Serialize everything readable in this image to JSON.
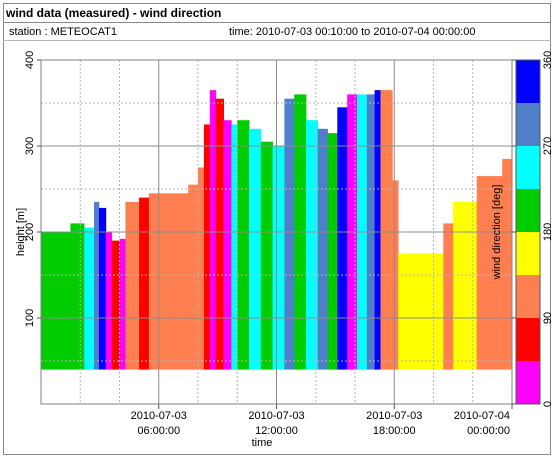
{
  "header": {
    "title": "wind data (measured) - wind direction",
    "station": "station : METEOCAT1",
    "time_range": "time: 2010-07-03 00:10:00 to 2010-07-04 00:00:00"
  },
  "chart_data": {
    "type": "heatmap",
    "xlabel": "time",
    "ylabel": "height [m]",
    "x_ticks": [
      {
        "hour": 6,
        "line1": "2010-07-03",
        "line2": "06:00:00"
      },
      {
        "hour": 12,
        "line1": "2010-07-03",
        "line2": "12:00:00"
      },
      {
        "hour": 18,
        "line1": "2010-07-03",
        "line2": "18:00:00"
      },
      {
        "hour": 24,
        "line1": "2010-07-04",
        "line2": "00:00:00"
      }
    ],
    "xlim_hours": [
      0,
      24
    ],
    "ylim": [
      0,
      400
    ],
    "y_ticks": [
      100,
      200,
      300,
      400
    ],
    "grid": true,
    "colorbar": {
      "label": "wind direction [deg]",
      "range": [
        0,
        360
      ],
      "ticks": [
        0,
        90,
        180,
        270,
        360
      ],
      "bins": [
        {
          "from": 0,
          "to": 45,
          "color": "#ff00ff"
        },
        {
          "from": 45,
          "to": 90,
          "color": "#ff0000"
        },
        {
          "from": 90,
          "to": 135,
          "color": "#ff7f50"
        },
        {
          "from": 135,
          "to": 180,
          "color": "#ffff00"
        },
        {
          "from": 180,
          "to": 225,
          "color": "#00cc00"
        },
        {
          "from": 225,
          "to": 270,
          "color": "#00ffff"
        },
        {
          "from": 270,
          "to": 315,
          "color": "#4f7fc8"
        },
        {
          "from": 315,
          "to": 360,
          "color": "#0000ff"
        }
      ]
    },
    "profile_bottom_m": 40,
    "profiles": [
      {
        "start": 0.0,
        "end": 1.5,
        "top": 200,
        "dir": 200
      },
      {
        "start": 1.5,
        "end": 2.2,
        "top": 210,
        "dir": 220
      },
      {
        "start": 2.2,
        "end": 2.7,
        "top": 205,
        "dir": 240
      },
      {
        "start": 2.7,
        "end": 2.95,
        "top": 235,
        "dir": 300
      },
      {
        "start": 2.95,
        "end": 3.3,
        "top": 228,
        "dir": 320
      },
      {
        "start": 3.3,
        "end": 3.6,
        "top": 200,
        "dir": 20
      },
      {
        "start": 3.6,
        "end": 4.0,
        "top": 190,
        "dir": 80
      },
      {
        "start": 4.0,
        "end": 4.3,
        "top": 192,
        "dir": 30
      },
      {
        "start": 4.3,
        "end": 5.0,
        "top": 235,
        "dir": 110
      },
      {
        "start": 5.0,
        "end": 5.5,
        "top": 240,
        "dir": 60
      },
      {
        "start": 5.5,
        "end": 7.5,
        "top": 245,
        "dir": 110
      },
      {
        "start": 7.5,
        "end": 8.0,
        "top": 255,
        "dir": 100
      },
      {
        "start": 8.0,
        "end": 8.3,
        "top": 275,
        "dir": 110
      },
      {
        "start": 8.3,
        "end": 8.6,
        "top": 325,
        "dir": 70
      },
      {
        "start": 8.6,
        "end": 8.9,
        "top": 365,
        "dir": 0
      },
      {
        "start": 8.9,
        "end": 9.3,
        "top": 355,
        "dir": 60
      },
      {
        "start": 9.3,
        "end": 9.7,
        "top": 330,
        "dir": 30
      },
      {
        "start": 9.7,
        "end": 10.0,
        "top": 325,
        "dir": 230
      },
      {
        "start": 10.0,
        "end": 10.6,
        "top": 330,
        "dir": 210
      },
      {
        "start": 10.6,
        "end": 11.2,
        "top": 320,
        "dir": 250
      },
      {
        "start": 11.2,
        "end": 11.8,
        "top": 305,
        "dir": 200
      },
      {
        "start": 11.8,
        "end": 12.4,
        "top": 300,
        "dir": 240
      },
      {
        "start": 12.4,
        "end": 12.9,
        "top": 355,
        "dir": 290
      },
      {
        "start": 12.9,
        "end": 13.5,
        "top": 360,
        "dir": 200
      },
      {
        "start": 13.5,
        "end": 14.1,
        "top": 330,
        "dir": 240
      },
      {
        "start": 14.1,
        "end": 14.6,
        "top": 320,
        "dir": 300
      },
      {
        "start": 14.6,
        "end": 15.1,
        "top": 315,
        "dir": 210
      },
      {
        "start": 15.1,
        "end": 15.6,
        "top": 345,
        "dir": 330
      },
      {
        "start": 15.6,
        "end": 16.1,
        "top": 360,
        "dir": 20
      },
      {
        "start": 16.1,
        "end": 16.6,
        "top": 360,
        "dir": 250
      },
      {
        "start": 16.6,
        "end": 17.0,
        "top": 360,
        "dir": 290
      },
      {
        "start": 17.0,
        "end": 17.3,
        "top": 365,
        "dir": 330
      },
      {
        "start": 17.3,
        "end": 17.9,
        "top": 365,
        "dir": 110
      },
      {
        "start": 17.9,
        "end": 18.2,
        "top": 260,
        "dir": 120
      },
      {
        "start": 18.2,
        "end": 20.5,
        "top": 175,
        "dir": 160
      },
      {
        "start": 20.5,
        "end": 21.0,
        "top": 210,
        "dir": 120
      },
      {
        "start": 21.0,
        "end": 22.2,
        "top": 235,
        "dir": 170
      },
      {
        "start": 22.2,
        "end": 23.5,
        "top": 265,
        "dir": 120
      },
      {
        "start": 23.5,
        "end": 24.0,
        "top": 285,
        "dir": 100
      }
    ]
  }
}
